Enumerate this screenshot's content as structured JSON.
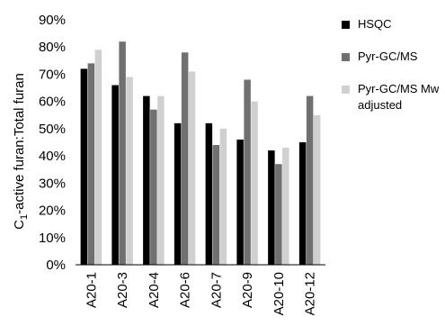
{
  "chart_data": {
    "type": "bar",
    "categories": [
      "A20-1",
      "A20-3",
      "A20-4",
      "A20-6",
      "A20-7",
      "A20-9",
      "A20-10",
      "A20-12"
    ],
    "series": [
      {
        "name": "HSQC",
        "color": "#000000",
        "values": [
          72,
          66,
          62,
          52,
          52,
          46,
          42,
          45
        ]
      },
      {
        "name": "Pyr-GC/MS",
        "color": "#707070",
        "values": [
          74,
          82,
          57,
          78,
          44,
          68,
          37,
          62
        ]
      },
      {
        "name": "Pyr-GC/MS Mw adjusted",
        "color": "#d0d0d0",
        "values": [
          79,
          69,
          62,
          71,
          50,
          60,
          43,
          55
        ]
      }
    ],
    "ylabel": {
      "pre": "C",
      "sub": "1",
      "post": "-active furan:Total furan"
    },
    "ylim": [
      0,
      90
    ],
    "yticks": [
      "0%",
      "10%",
      "20%",
      "30%",
      "40%",
      "50%",
      "60%",
      "70%",
      "80%",
      "90%"
    ],
    "grid": false,
    "legend": "right"
  }
}
